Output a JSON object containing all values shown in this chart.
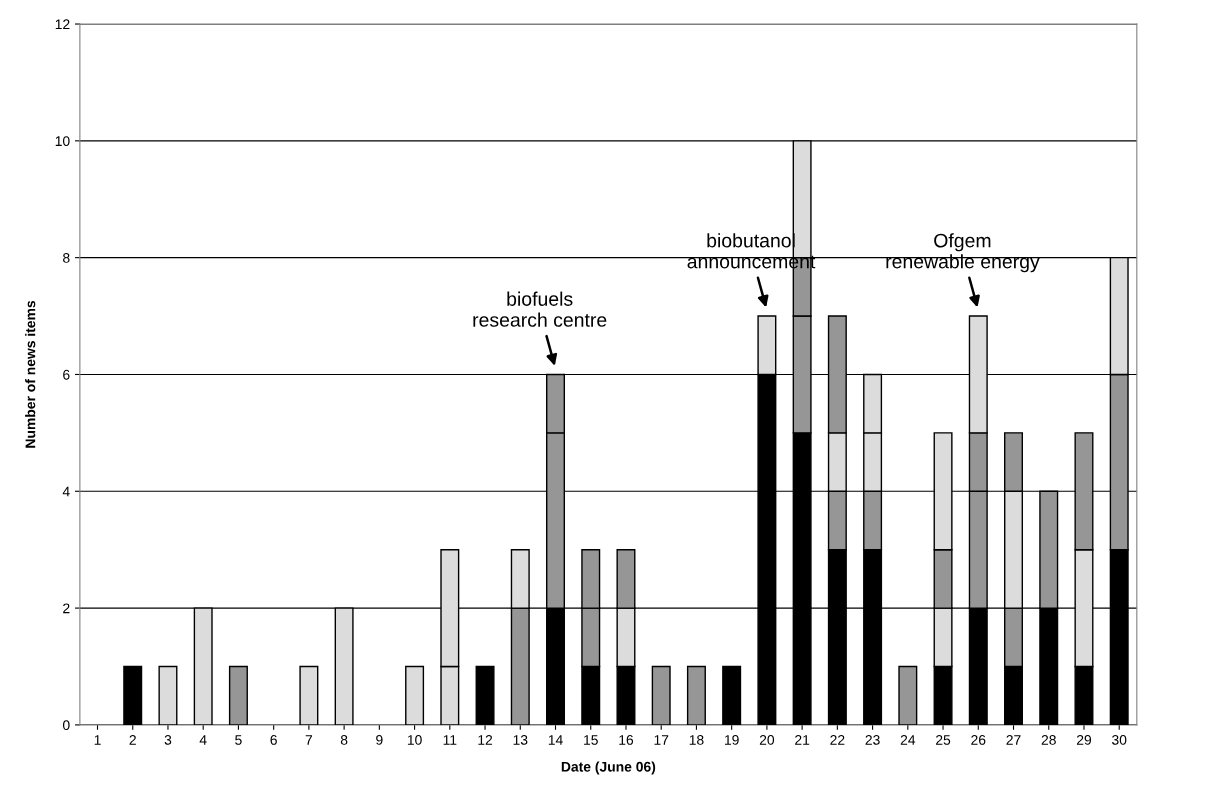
{
  "chart_data": {
    "type": "bar",
    "stacked": true,
    "xlabel": "Date (June 06)",
    "ylabel": "Number of news items",
    "categories": [
      "1",
      "2",
      "3",
      "4",
      "5",
      "6",
      "7",
      "8",
      "9",
      "10",
      "11",
      "12",
      "13",
      "14",
      "15",
      "16",
      "17",
      "18",
      "19",
      "20",
      "21",
      "22",
      "23",
      "24",
      "25",
      "26",
      "27",
      "28",
      "29",
      "30"
    ],
    "series": [
      {
        "color": "#000000",
        "values": [
          0,
          1,
          0,
          0,
          0,
          0,
          0,
          0,
          0,
          0,
          0,
          1,
          0,
          2,
          1,
          1,
          0,
          0,
          1,
          6,
          5,
          3,
          3,
          0,
          1,
          2,
          1,
          2,
          1,
          3
        ]
      },
      {
        "color": "#969696",
        "values": [
          0,
          0,
          0,
          0,
          1,
          0,
          0,
          0,
          0,
          0,
          0,
          0,
          2,
          3,
          1,
          0,
          1,
          1,
          0,
          0,
          2,
          1,
          1,
          1,
          0,
          2,
          1,
          2,
          0,
          3
        ]
      },
      {
        "color": "#dcdcdc",
        "values": [
          0,
          0,
          1,
          2,
          0,
          0,
          1,
          2,
          0,
          1,
          1,
          0,
          1,
          0,
          0,
          1,
          0,
          0,
          0,
          0,
          0,
          1,
          1,
          0,
          1,
          0,
          2,
          0,
          2,
          0
        ]
      },
      {
        "color": "#969696",
        "values": [
          0,
          0,
          0,
          0,
          0,
          0,
          0,
          0,
          0,
          0,
          0,
          0,
          0,
          1,
          1,
          1,
          0,
          0,
          0,
          0,
          1,
          2,
          0,
          0,
          1,
          1,
          1,
          0,
          2,
          0
        ]
      },
      {
        "color": "#dcdcdc",
        "values": [
          0,
          0,
          0,
          0,
          0,
          0,
          0,
          0,
          0,
          0,
          2,
          0,
          0,
          0,
          0,
          0,
          0,
          0,
          0,
          1,
          2,
          0,
          1,
          0,
          2,
          2,
          0,
          0,
          0,
          2
        ]
      }
    ],
    "ylim": [
      0,
      12
    ],
    "yticks": [
      0,
      2,
      4,
      6,
      8,
      10,
      12
    ],
    "grid": "y",
    "annotations": [
      {
        "text": "biofuels\nresearch centre",
        "x": "14",
        "y": 6
      },
      {
        "text": "biobutanol\nannouncement",
        "x": "20",
        "y": 7
      },
      {
        "text": "Ofgem\nrenewable energy",
        "x": "26",
        "y": 7
      }
    ]
  }
}
